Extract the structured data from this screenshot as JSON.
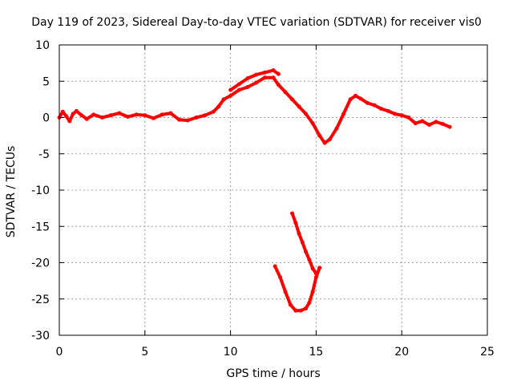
{
  "chart_data": {
    "type": "scatter",
    "title": "Day 119 of 2023, Sidereal Day-to-day VTEC variation (SDTVAR) for receiver vis0",
    "xlabel": "GPS time / hours",
    "ylabel": "SDTVAR / TECUs",
    "xlim": [
      0,
      25
    ],
    "ylim": [
      -30,
      10
    ],
    "xticks": [
      0,
      5,
      10,
      15,
      20,
      25
    ],
    "yticks": [
      -30,
      -25,
      -20,
      -15,
      -10,
      -5,
      0,
      5,
      10
    ],
    "grid": true,
    "series_color": "#ff0000",
    "series": [
      {
        "name": "main-trace",
        "x": [
          0.0,
          0.2,
          0.4,
          0.6,
          0.8,
          1.0,
          1.3,
          1.6,
          2.0,
          2.5,
          3.0,
          3.5,
          4.0,
          4.5,
          5.0,
          5.5,
          6.0,
          6.5,
          7.0,
          7.5,
          8.0,
          8.5,
          9.0,
          9.3,
          9.6,
          10.0,
          10.5,
          11.0,
          11.5,
          12.0,
          12.5,
          12.8,
          13.2,
          13.6,
          14.0,
          14.4,
          14.8,
          15.2,
          15.5,
          15.8,
          16.2,
          16.6,
          17.0,
          17.3,
          17.6,
          18.0,
          18.4,
          18.8,
          19.2,
          19.6,
          20.0,
          20.4,
          20.8,
          21.2,
          21.6,
          22.0,
          22.4,
          22.8
        ],
        "y": [
          0.0,
          0.8,
          0.2,
          -0.5,
          0.5,
          0.9,
          0.3,
          -0.2,
          0.4,
          0.0,
          0.3,
          0.6,
          0.1,
          0.4,
          0.3,
          -0.1,
          0.4,
          0.6,
          -0.3,
          -0.4,
          0.0,
          0.3,
          0.8,
          1.5,
          2.5,
          3.0,
          3.8,
          4.2,
          4.8,
          5.5,
          5.5,
          4.5,
          3.5,
          2.5,
          1.5,
          0.5,
          -0.8,
          -2.5,
          -3.5,
          -3.0,
          -1.5,
          0.5,
          2.5,
          3.0,
          2.6,
          2.0,
          1.7,
          1.2,
          0.9,
          0.5,
          0.3,
          0.0,
          -0.8,
          -0.5,
          -1.0,
          -0.6,
          -0.9,
          -1.3
        ]
      },
      {
        "name": "upper-band",
        "x": [
          10.0,
          10.5,
          11.0,
          11.5,
          12.0,
          12.5,
          12.8
        ],
        "y": [
          3.8,
          4.6,
          5.4,
          5.9,
          6.2,
          6.5,
          6.0
        ]
      },
      {
        "name": "lower-arc",
        "x": [
          12.6,
          12.9,
          13.2,
          13.5,
          13.8,
          14.1,
          14.4,
          14.6,
          14.8,
          15.0,
          15.2
        ],
        "y": [
          -20.5,
          -22.0,
          -24.0,
          -25.8,
          -26.6,
          -26.6,
          -26.3,
          -25.5,
          -24.0,
          -22.0,
          -20.7
        ]
      },
      {
        "name": "falling-segment",
        "x": [
          13.6,
          13.8,
          14.0,
          14.2,
          14.4,
          14.6,
          14.8,
          15.0
        ],
        "y": [
          -13.2,
          -14.5,
          -16.0,
          -17.2,
          -18.5,
          -19.6,
          -20.8,
          -21.5
        ]
      }
    ]
  }
}
